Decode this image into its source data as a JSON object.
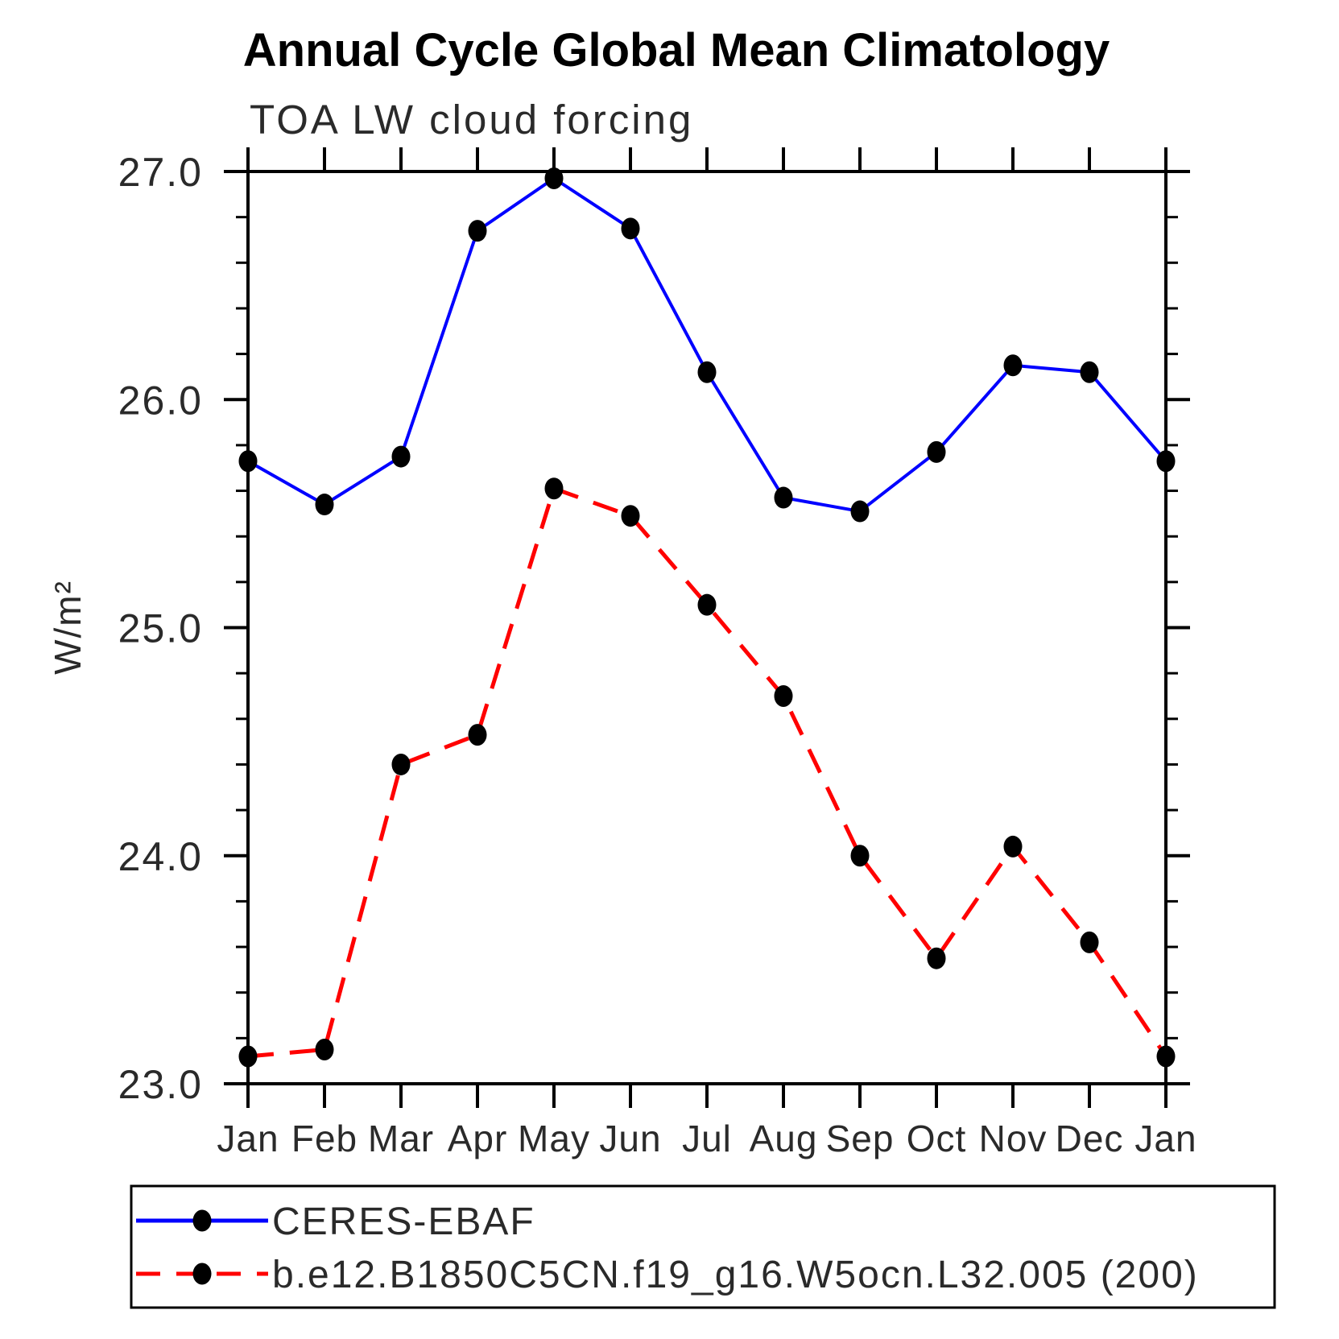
{
  "title": "Annual Cycle Global Mean Climatology",
  "subtitle": "TOA LW cloud forcing",
  "chart_data": {
    "type": "line",
    "title": "Annual Cycle Global Mean Climatology",
    "subtitle": "TOA LW cloud forcing",
    "ylabel": "W/m²",
    "xlabel": "",
    "ylim": [
      23.0,
      27.0
    ],
    "yticks": [
      23.0,
      24.0,
      25.0,
      26.0,
      27.0
    ],
    "ytick_labels": [
      "23.0",
      "24.0",
      "25.0",
      "26.0",
      "27.0"
    ],
    "minor_tick_interval": 0.2,
    "grid": false,
    "legend_position": "bottom",
    "categories": [
      "Jan",
      "Feb",
      "Mar",
      "Apr",
      "May",
      "Jun",
      "Jul",
      "Aug",
      "Sep",
      "Oct",
      "Nov",
      "Dec",
      "Jan"
    ],
    "series": [
      {
        "name": "CERES-EBAF",
        "color": "#0000ff",
        "line_style": "solid",
        "line_width": 4,
        "marker": "filled-black-dot",
        "marker_color": "#000000",
        "values": [
          25.73,
          25.54,
          25.75,
          26.74,
          26.97,
          26.75,
          26.12,
          25.57,
          25.51,
          25.77,
          26.15,
          26.12,
          25.73
        ]
      },
      {
        "name": "b.e12.B1850C5CN.f19_g16.W5ocn.L32.005 (200)",
        "color": "#ff0000",
        "line_style": "dashed",
        "line_width": 5,
        "marker": "filled-black-dot",
        "marker_color": "#000000",
        "values": [
          23.12,
          23.15,
          24.4,
          24.53,
          25.61,
          25.49,
          25.1,
          24.7,
          24.0,
          23.55,
          24.04,
          23.62,
          23.12
        ]
      }
    ]
  }
}
